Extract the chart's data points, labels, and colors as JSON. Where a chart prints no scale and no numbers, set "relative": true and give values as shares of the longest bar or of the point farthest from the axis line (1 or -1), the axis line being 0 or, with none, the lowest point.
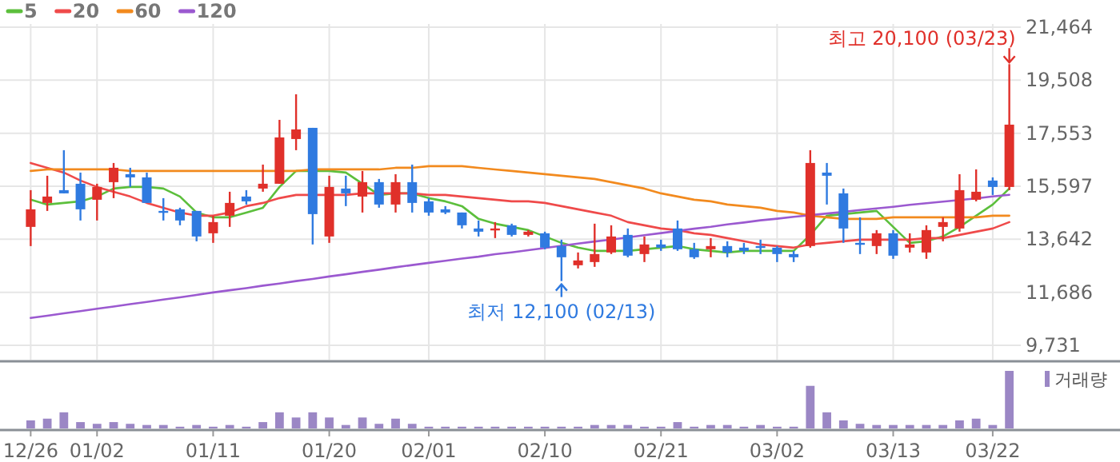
{
  "chart_data": [
    {
      "type": "candlestick",
      "legend": "top left",
      "grid": true,
      "categories": [
        "12/26",
        null,
        null,
        null,
        "01/02",
        null,
        null,
        null,
        null,
        null,
        null,
        "01/11",
        null,
        null,
        null,
        null,
        null,
        null,
        "01/20",
        null,
        null,
        null,
        null,
        null,
        "02/01",
        null,
        null,
        null,
        null,
        null,
        null,
        "02/10",
        null,
        null,
        null,
        null,
        null,
        null,
        "02/21",
        null,
        null,
        null,
        null,
        null,
        null,
        "03/02",
        null,
        null,
        null,
        null,
        null,
        null,
        "03/13",
        null,
        null,
        null,
        null,
        null,
        "03/22",
        null
      ],
      "ohlc": [
        [
          14098,
          15453,
          13390,
          14746
        ],
        [
          14982,
          15984,
          14687,
          15217
        ],
        [
          15453,
          16927,
          15335,
          15335
        ],
        [
          15689,
          16101,
          14334,
          14746
        ],
        [
          15099,
          15689,
          14334,
          15571
        ],
        [
          15748,
          16455,
          15158,
          16278
        ],
        [
          16042,
          16278,
          15571,
          15924
        ],
        [
          15924,
          16101,
          14982,
          14982
        ],
        [
          14687,
          15158,
          14334,
          14628
        ],
        [
          14746,
          14805,
          14157,
          14334
        ],
        [
          14687,
          14687,
          13567,
          13744
        ],
        [
          13862,
          14510,
          13509,
          14275
        ],
        [
          14510,
          15394,
          14098,
          14982
        ],
        [
          15217,
          15453,
          14923,
          15040
        ],
        [
          15512,
          16396,
          15394,
          15689
        ],
        [
          15689,
          18046,
          15689,
          17398
        ],
        [
          17339,
          18989,
          16927,
          17693
        ],
        [
          17751,
          17751,
          13450,
          14569
        ],
        [
          13744,
          15984,
          13509,
          15571
        ],
        [
          15512,
          15984,
          14864,
          15335
        ],
        [
          15217,
          16160,
          14628,
          15748
        ],
        [
          15748,
          15866,
          14805,
          14923
        ],
        [
          14923,
          16042,
          14628,
          15748
        ],
        [
          15748,
          16396,
          14628,
          14982
        ],
        [
          15040,
          15158,
          14510,
          14628
        ],
        [
          14746,
          14864,
          14569,
          14628
        ],
        [
          14628,
          14628,
          14039,
          14157
        ],
        [
          14039,
          14334,
          13744,
          13921
        ],
        [
          13980,
          14275,
          13685,
          14039
        ],
        [
          14157,
          14216,
          13744,
          13803
        ],
        [
          13803,
          13980,
          13744,
          13921
        ],
        [
          13862,
          13921,
          13273,
          13332
        ],
        [
          13391,
          13626,
          12100,
          12978
        ],
        [
          12683,
          13155,
          12566,
          12860
        ],
        [
          12801,
          14216,
          12624,
          13096
        ],
        [
          13155,
          14157,
          13096,
          13744
        ],
        [
          13803,
          14039,
          12978,
          13037
        ],
        [
          13096,
          13744,
          12801,
          13450
        ],
        [
          13450,
          13626,
          13214,
          13332
        ],
        [
          14039,
          14334,
          13214,
          13273
        ],
        [
          13273,
          13509,
          12919,
          12978
        ],
        [
          13273,
          13685,
          12978,
          13391
        ],
        [
          13391,
          13567,
          12978,
          13155
        ],
        [
          13332,
          13509,
          13096,
          13214
        ],
        [
          13391,
          13626,
          13096,
          13332
        ],
        [
          13332,
          13391,
          12801,
          13096
        ],
        [
          13096,
          13214,
          12801,
          12978
        ],
        [
          13391,
          16927,
          13332,
          16455
        ],
        [
          16101,
          16455,
          14923,
          15984
        ],
        [
          15335,
          15512,
          13509,
          14039
        ],
        [
          13509,
          14452,
          13096,
          13450
        ],
        [
          13391,
          13980,
          13096,
          13862
        ],
        [
          13862,
          13980,
          12919,
          13037
        ],
        [
          13332,
          13862,
          13155,
          13450
        ],
        [
          13155,
          14157,
          12919,
          13980
        ],
        [
          14098,
          14452,
          13567,
          14275
        ],
        [
          14039,
          16042,
          13921,
          15453
        ],
        [
          15099,
          16219,
          15040,
          15394
        ],
        [
          15807,
          15924,
          15276,
          15571
        ],
        [
          15571,
          20100,
          15453,
          17869
        ]
      ],
      "colors": [
        "#e0302a",
        "#e0302a",
        "#2f7ae0",
        "#2f7ae0",
        "#e0302a",
        "#e0302a",
        "#2f7ae0",
        "#2f7ae0",
        "#2f7ae0",
        "#2f7ae0",
        "#2f7ae0",
        "#e0302a",
        "#e0302a",
        "#2f7ae0",
        "#e0302a",
        "#e0302a",
        "#e0302a",
        "#2f7ae0",
        "#e0302a",
        "#2f7ae0",
        "#e0302a",
        "#2f7ae0",
        "#e0302a",
        "#2f7ae0",
        "#2f7ae0",
        "#2f7ae0",
        "#2f7ae0",
        "#2f7ae0",
        "#e0302a",
        "#2f7ae0",
        "#e0302a",
        "#2f7ae0",
        "#2f7ae0",
        "#e0302a",
        "#e0302a",
        "#e0302a",
        "#2f7ae0",
        "#e0302a",
        "#2f7ae0",
        "#2f7ae0",
        "#2f7ae0",
        "#e0302a",
        "#2f7ae0",
        "#2f7ae0",
        "#2f7ae0",
        "#2f7ae0",
        "#2f7ae0",
        "#e0302a",
        "#2f7ae0",
        "#2f7ae0",
        "#2f7ae0",
        "#e0302a",
        "#2f7ae0",
        "#e0302a",
        "#e0302a",
        "#e0302a",
        "#e0302a",
        "#e0302a",
        "#2f7ae0",
        "#e0302a"
      ],
      "series": [
        {
          "name": "5",
          "type": "line",
          "color": "#5cbf3c",
          "values": [
            15100,
            14923,
            14982,
            15041,
            15218,
            15512,
            15571,
            15571,
            15512,
            15218,
            14628,
            14452,
            14452,
            14628,
            14805,
            15571,
            16161,
            16161,
            16161,
            16102,
            15689,
            15276,
            15335,
            15335,
            15159,
            15041,
            14864,
            14393,
            14216,
            14098,
            13980,
            13744,
            13509,
            13332,
            13214,
            13214,
            13214,
            13273,
            13332,
            13391,
            13273,
            13214,
            13155,
            13214,
            13214,
            13214,
            13214,
            13803,
            14511,
            14569,
            14628,
            14687,
            14098,
            13509,
            13568,
            13744,
            14098,
            14511,
            14923,
            15512
          ]
        },
        {
          "name": "20",
          "type": "line",
          "color": "#ef4a4a",
          "values": [
            16455,
            16278,
            16102,
            15807,
            15571,
            15394,
            15218,
            14982,
            14805,
            14628,
            14511,
            14511,
            14628,
            14864,
            14982,
            15159,
            15276,
            15276,
            15276,
            15276,
            15335,
            15335,
            15335,
            15335,
            15276,
            15276,
            15218,
            15159,
            15100,
            15041,
            15041,
            14982,
            14864,
            14746,
            14628,
            14511,
            14275,
            14157,
            14039,
            13980,
            13862,
            13803,
            13685,
            13568,
            13450,
            13391,
            13332,
            13450,
            13509,
            13568,
            13627,
            13627,
            13627,
            13627,
            13685,
            13685,
            13803,
            13921,
            14039,
            14275
          ]
        },
        {
          "name": "60",
          "type": "line",
          "color": "#f28a1e",
          "values": [
            16161,
            16219,
            16219,
            16219,
            16219,
            16219,
            16161,
            16161,
            16161,
            16161,
            16161,
            16161,
            16161,
            16161,
            16161,
            16161,
            16161,
            16219,
            16219,
            16219,
            16219,
            16219,
            16278,
            16278,
            16337,
            16337,
            16337,
            16278,
            16219,
            16161,
            16102,
            16043,
            15984,
            15925,
            15866,
            15748,
            15630,
            15512,
            15335,
            15218,
            15100,
            15041,
            14923,
            14864,
            14805,
            14687,
            14628,
            14511,
            14452,
            14393,
            14393,
            14393,
            14452,
            14452,
            14452,
            14452,
            14452,
            14452,
            14511,
            14511
          ]
        },
        {
          "name": "120",
          "type": "line",
          "color": "#9b59d0",
          "values": [
            10740,
            10820,
            10910,
            10990,
            11080,
            11160,
            11250,
            11330,
            11420,
            11500,
            11590,
            11680,
            11760,
            11840,
            11930,
            12010,
            12100,
            12180,
            12270,
            12350,
            12440,
            12520,
            12610,
            12690,
            12770,
            12850,
            12930,
            13000,
            13090,
            13160,
            13240,
            13320,
            13400,
            13480,
            13560,
            13630,
            13710,
            13790,
            13870,
            13950,
            14030,
            14100,
            14190,
            14260,
            14340,
            14400,
            14470,
            14530,
            14590,
            14650,
            14720,
            14780,
            14840,
            14910,
            14970,
            15030,
            15090,
            15150,
            15220,
            15280
          ]
        }
      ],
      "ylim": [
        9200,
        21464
      ],
      "yticks": [
        {
          "value": 9731,
          "label": "9,731"
        },
        {
          "value": 11686,
          "label": "11,686"
        },
        {
          "value": 13642,
          "label": "13,642"
        },
        {
          "value": 15597,
          "label": "15,597"
        },
        {
          "value": 17553,
          "label": "17,553"
        },
        {
          "value": 19508,
          "label": "19,508"
        },
        {
          "value": 21464,
          "label": "21,464"
        }
      ],
      "annotations": [
        "최고 20,100 (03/23)",
        {
          "text": "최저 12,100 (02/13)",
          "y": 12100
        }
      ]
    },
    {
      "type": "bar",
      "relative": true,
      "legend": "top right",
      "categories": [
        null,
        null,
        null,
        null,
        null,
        null,
        null,
        null,
        null,
        null,
        null,
        null,
        null,
        null,
        null,
        null,
        null,
        null,
        null,
        null,
        null,
        null,
        null,
        null,
        null,
        null,
        null,
        null,
        null,
        null,
        null,
        null,
        null,
        null,
        null,
        null,
        null,
        null,
        null,
        null,
        null,
        null,
        null,
        null,
        null,
        null,
        null,
        null,
        null,
        null,
        null,
        null,
        null,
        null,
        null,
        null,
        null,
        null,
        null,
        null
      ],
      "series": [
        {
          "name": "거래량",
          "color": "#9b87c5",
          "values": [
            0.14,
            0.17,
            0.28,
            0.11,
            0.08,
            0.11,
            0.08,
            0.06,
            0.06,
            0.03,
            0.06,
            0.03,
            0.06,
            0.03,
            0.11,
            0.28,
            0.19,
            0.28,
            0.19,
            0.06,
            0.19,
            0.08,
            0.17,
            0.08,
            0.03,
            0.03,
            0.03,
            0.03,
            0.03,
            0.03,
            0.03,
            0.03,
            0.03,
            0.03,
            0.06,
            0.06,
            0.06,
            0.03,
            0.03,
            0.11,
            0.03,
            0.06,
            0.06,
            0.03,
            0.06,
            0.03,
            0.03,
            0.74,
            0.28,
            0.14,
            0.08,
            0.06,
            0.06,
            0.06,
            0.06,
            0.06,
            0.14,
            0.17,
            0.06,
            1
          ]
        }
      ]
    }
  ]
}
